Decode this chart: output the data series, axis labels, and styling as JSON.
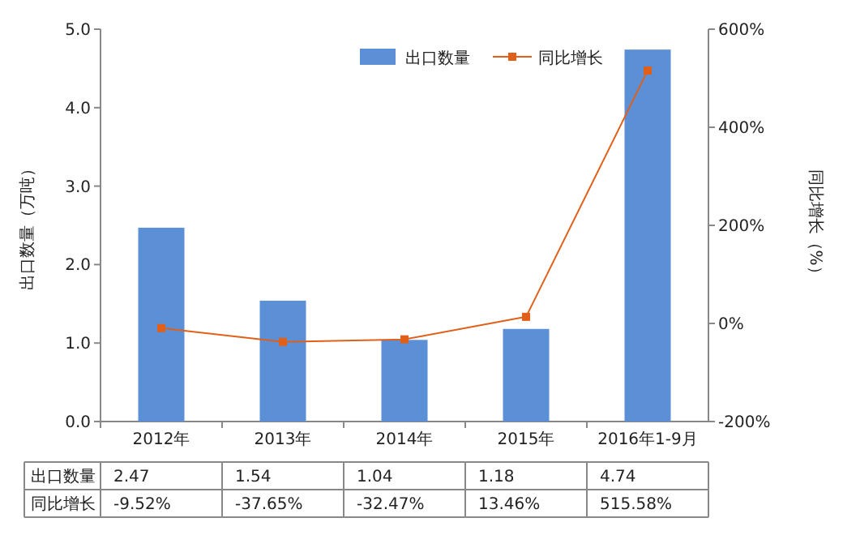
{
  "chart_data": {
    "type": "bar",
    "ylabel": "出口数量（万吨）",
    "y2label": "同比增长（%）",
    "categories": [
      "2012年",
      "2013年",
      "2014年",
      "2015年",
      "2016年1-9月"
    ],
    "series": [
      {
        "name": "出口数量",
        "color": "#5b8fd6",
        "values": [
          2.47,
          1.54,
          1.04,
          1.18,
          4.74
        ],
        "value_labels": [
          "2.47",
          "1.54",
          "1.04",
          "1.18",
          "4.74"
        ]
      },
      {
        "name": "同比增长",
        "type": "line",
        "axis": "y2",
        "color": "#e0601a",
        "marker": "square",
        "values": [
          -9.52,
          -37.65,
          -32.47,
          13.46,
          515.58
        ],
        "value_labels": [
          "-9.52%",
          "-37.65%",
          "-32.47%",
          "13.46%",
          "515.58%"
        ]
      }
    ],
    "ylim": [
      0,
      5
    ],
    "yticks": [
      {
        "value": 0,
        "label": "0.0"
      },
      {
        "value": 1,
        "label": "1.0"
      },
      {
        "value": 2,
        "label": "2.0"
      },
      {
        "value": 3,
        "label": "3.0"
      },
      {
        "value": 4,
        "label": "4.0"
      },
      {
        "value": 5,
        "label": "5.0"
      }
    ],
    "y2lim": [
      -200,
      600
    ],
    "y2ticks": [
      {
        "value": -200,
        "label": "-200%"
      },
      {
        "value": 0,
        "label": "0%"
      },
      {
        "value": 200,
        "label": "200%"
      },
      {
        "value": 400,
        "label": "400%"
      },
      {
        "value": 600,
        "label": "600%"
      }
    ],
    "legend": "top right"
  }
}
